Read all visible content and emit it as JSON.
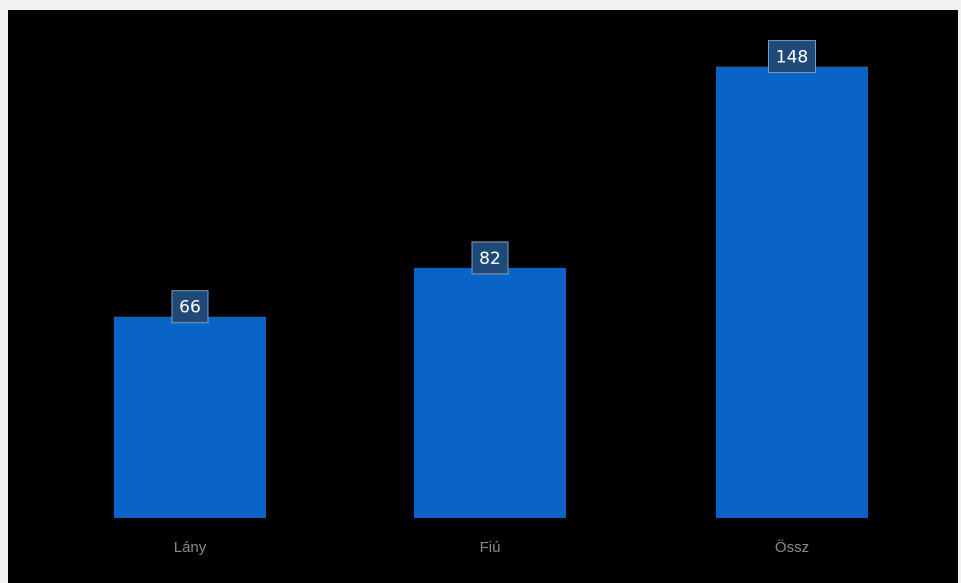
{
  "chart_data": {
    "type": "bar",
    "categories": [
      "Lány",
      "Fiú",
      "Össz"
    ],
    "values": [
      66,
      82,
      148
    ],
    "title": "",
    "xlabel": "",
    "ylabel": "",
    "ylim": [
      0,
      160
    ],
    "grid": false,
    "legend": "none",
    "colors": {
      "background": "#000000",
      "bar": "#0a63c7",
      "label_box": "#1f4a77"
    }
  }
}
